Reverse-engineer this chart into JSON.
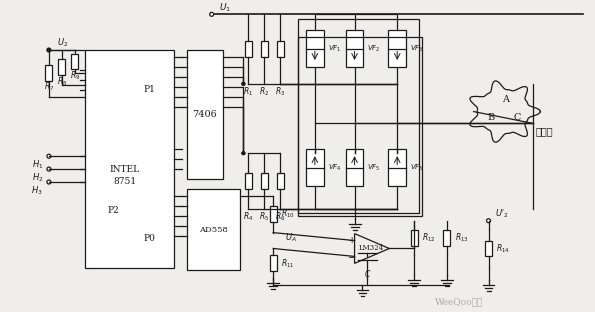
{
  "bg": "#f0eeea",
  "lc": "#1a1a1a",
  "lw": 0.9,
  "fw": 5.95,
  "fh": 3.12,
  "dpi": 100,
  "watermark": "WeeQoo维库",
  "motor_label": "电动机",
  "chip_label1": "INTEL",
  "chip_label2": "8751"
}
